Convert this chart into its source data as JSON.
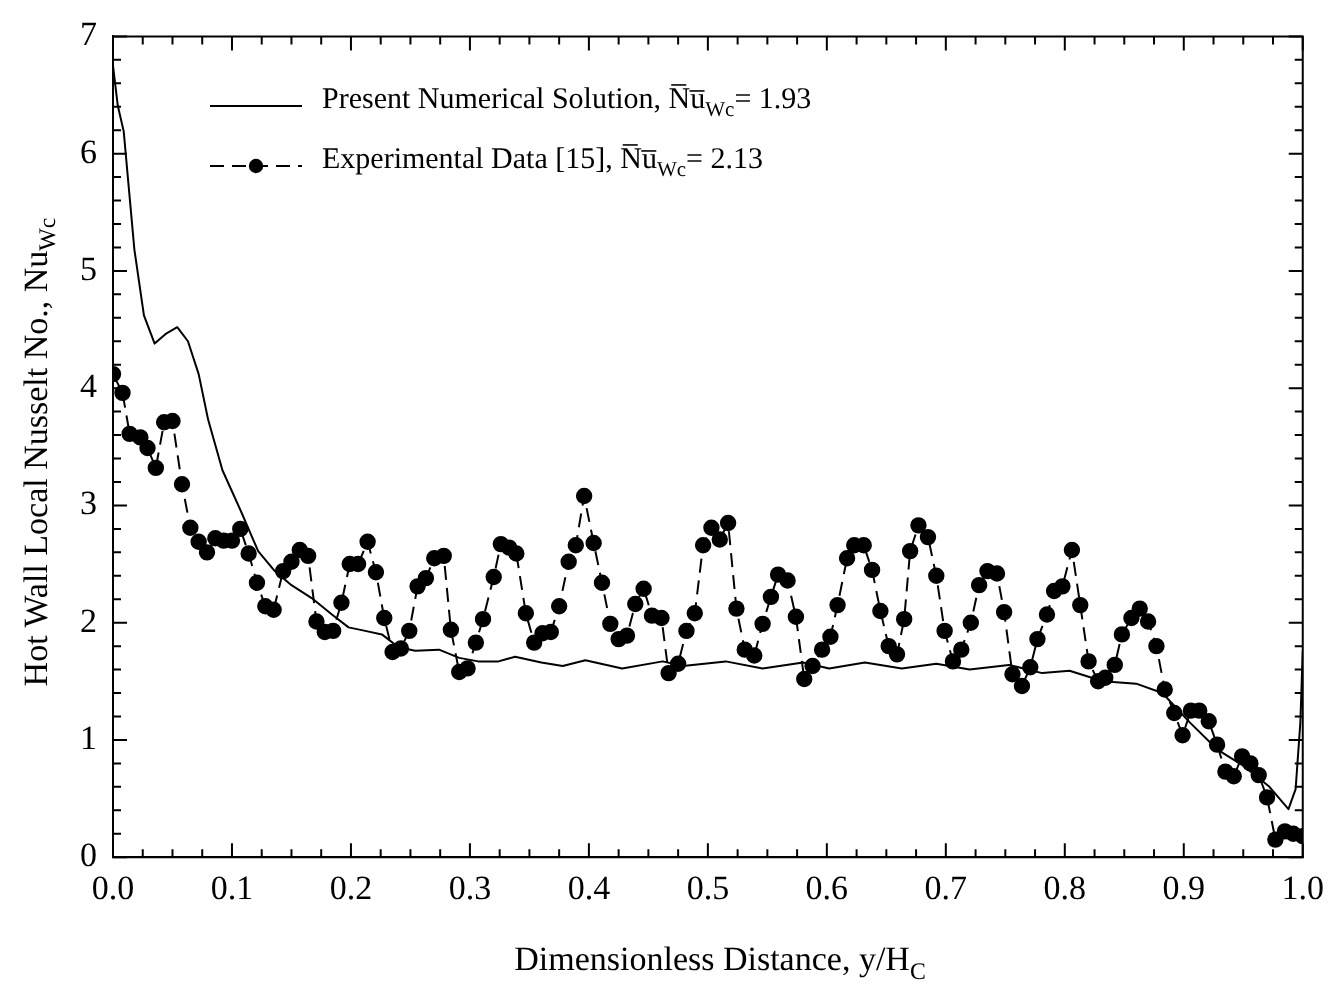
{
  "chart_data": {
    "type": "line",
    "xlabel": "Dimensionless Distance, y/H$_{C}$",
    "ylabel": "Hot Wall Local Nusselt No., Nu$_{Wc}$",
    "xlim": [
      0,
      1
    ],
    "ylim": [
      0,
      7
    ],
    "xticks": [
      {
        "value": 0,
        "label": "0.0"
      },
      {
        "value": 0.025,
        "label": null
      },
      {
        "value": 0.05,
        "label": null
      },
      {
        "value": 0.075,
        "label": null
      },
      {
        "value": 0.1,
        "label": "0.1"
      },
      {
        "value": 0.125,
        "label": null
      },
      {
        "value": 0.15,
        "label": null
      },
      {
        "value": 0.175,
        "label": null
      },
      {
        "value": 0.2,
        "label": "0.2"
      },
      {
        "value": 0.225,
        "label": null
      },
      {
        "value": 0.25,
        "label": null
      },
      {
        "value": 0.275,
        "label": null
      },
      {
        "value": 0.3,
        "label": "0.3"
      },
      {
        "value": 0.325,
        "label": null
      },
      {
        "value": 0.35,
        "label": null
      },
      {
        "value": 0.375,
        "label": null
      },
      {
        "value": 0.4,
        "label": "0.4"
      },
      {
        "value": 0.425,
        "label": null
      },
      {
        "value": 0.45,
        "label": null
      },
      {
        "value": 0.475,
        "label": null
      },
      {
        "value": 0.5,
        "label": "0.5"
      },
      {
        "value": 0.525,
        "label": null
      },
      {
        "value": 0.55,
        "label": null
      },
      {
        "value": 0.575,
        "label": null
      },
      {
        "value": 0.6,
        "label": "0.6"
      },
      {
        "value": 0.625,
        "label": null
      },
      {
        "value": 0.65,
        "label": null
      },
      {
        "value": 0.675,
        "label": null
      },
      {
        "value": 0.7,
        "label": "0.7"
      },
      {
        "value": 0.725,
        "label": null
      },
      {
        "value": 0.75,
        "label": null
      },
      {
        "value": 0.775,
        "label": null
      },
      {
        "value": 0.8,
        "label": "0.8"
      },
      {
        "value": 0.825,
        "label": null
      },
      {
        "value": 0.85,
        "label": null
      },
      {
        "value": 0.875,
        "label": null
      },
      {
        "value": 0.9,
        "label": "0.9"
      },
      {
        "value": 0.925,
        "label": null
      },
      {
        "value": 0.95,
        "label": null
      },
      {
        "value": 0.975,
        "label": null
      },
      {
        "value": 1,
        "label": "1.0"
      }
    ],
    "yticks": [
      0,
      {
        "value": 0.2,
        "label": null
      },
      {
        "value": 0.4,
        "label": null
      },
      {
        "value": 0.6,
        "label": null
      },
      {
        "value": 0.8,
        "label": null
      },
      1,
      {
        "value": 1.2,
        "label": null
      },
      {
        "value": 1.4,
        "label": null
      },
      {
        "value": 1.6,
        "label": null
      },
      {
        "value": 1.8,
        "label": null
      },
      2,
      {
        "value": 2.2,
        "label": null
      },
      {
        "value": 2.4,
        "label": null
      },
      {
        "value": 2.6,
        "label": null
      },
      {
        "value": 2.8,
        "label": null
      },
      3,
      {
        "value": 3.2,
        "label": null
      },
      {
        "value": 3.4,
        "label": null
      },
      {
        "value": 3.6,
        "label": null
      },
      {
        "value": 3.8,
        "label": null
      },
      4,
      {
        "value": 4.2,
        "label": null
      },
      {
        "value": 4.4,
        "label": null
      },
      {
        "value": 4.6,
        "label": null
      },
      {
        "value": 4.8,
        "label": null
      },
      5,
      {
        "value": 5.2,
        "label": null
      },
      {
        "value": 5.4,
        "label": null
      },
      {
        "value": 5.6,
        "label": null
      },
      {
        "value": 5.8,
        "label": null
      },
      6,
      {
        "value": 6.2,
        "label": null
      },
      {
        "value": 6.4,
        "label": null
      },
      {
        "value": 6.6,
        "label": null
      },
      {
        "value": 6.8,
        "label": null
      },
      7
    ],
    "legend": "top left",
    "series": [
      {
        "name": "Present Numerical Solution, N̅u̅$_{Wc}$= 1.93",
        "color": "#000000",
        "marker": "none",
        "line_style": "solid",
        "x": [
          0,
          0.004,
          0.009,
          0.013,
          0.018,
          0.026,
          0.035,
          0.044,
          0.054,
          0.063,
          0.072,
          0.08,
          0.092,
          0.108,
          0.122,
          0.136,
          0.15,
          0.167,
          0.184,
          0.198,
          0.212,
          0.226,
          0.24,
          0.254,
          0.274,
          0.291,
          0.307,
          0.324,
          0.338,
          0.36,
          0.378,
          0.397,
          0.428,
          0.462,
          0.479,
          0.515,
          0.546,
          0.58,
          0.602,
          0.632,
          0.663,
          0.692,
          0.72,
          0.753,
          0.781,
          0.804,
          0.832,
          0.86,
          0.882,
          0.905,
          0.928,
          0.95,
          0.972,
          0.988,
          0.994,
          0.998,
          1
        ],
        "values": [
          6.75,
          6.41,
          6.19,
          5.74,
          5.18,
          4.62,
          4.38,
          4.46,
          4.52,
          4.4,
          4.12,
          3.73,
          3.3,
          2.94,
          2.61,
          2.44,
          2.32,
          2.21,
          2.07,
          1.96,
          1.93,
          1.9,
          1.79,
          1.76,
          1.77,
          1.7,
          1.67,
          1.67,
          1.71,
          1.66,
          1.63,
          1.68,
          1.61,
          1.67,
          1.63,
          1.67,
          1.61,
          1.66,
          1.61,
          1.66,
          1.61,
          1.65,
          1.6,
          1.64,
          1.57,
          1.59,
          1.5,
          1.48,
          1.4,
          1.15,
          0.92,
          0.78,
          0.6,
          0.41,
          0.58,
          1.15,
          1.76
        ]
      },
      {
        "name": "Experimental Data [15], N̅u̅$_{Wc}$=  2.13",
        "color": "#000000",
        "marker": "circle",
        "line_style": "dashed",
        "x": [
          0,
          0.008,
          0.014,
          0.023,
          0.029,
          0.036,
          0.043,
          0.05,
          0.058,
          0.065,
          0.072,
          0.079,
          0.086,
          0.093,
          0.1,
          0.107,
          0.114,
          0.121,
          0.128,
          0.135,
          0.143,
          0.15,
          0.157,
          0.164,
          0.171,
          0.178,
          0.185,
          0.192,
          0.199,
          0.206,
          0.214,
          0.221,
          0.228,
          0.235,
          0.242,
          0.249,
          0.256,
          0.263,
          0.27,
          0.278,
          0.284,
          0.291,
          0.298,
          0.305,
          0.311,
          0.32,
          0.326,
          0.333,
          0.339,
          0.347,
          0.354,
          0.361,
          0.368,
          0.375,
          0.383,
          0.389,
          0.396,
          0.404,
          0.411,
          0.418,
          0.425,
          0.432,
          0.439,
          0.446,
          0.453,
          0.461,
          0.467,
          0.475,
          0.482,
          0.489,
          0.496,
          0.503,
          0.51,
          0.517,
          0.524,
          0.531,
          0.539,
          0.546,
          0.553,
          0.559,
          0.567,
          0.574,
          0.581,
          0.588,
          0.596,
          0.603,
          0.609,
          0.617,
          0.623,
          0.631,
          0.638,
          0.645,
          0.652,
          0.659,
          0.665,
          0.67,
          0.677,
          0.685,
          0.692,
          0.699,
          0.706,
          0.713,
          0.721,
          0.728,
          0.735,
          0.743,
          0.749,
          0.756,
          0.764,
          0.771,
          0.777,
          0.785,
          0.791,
          0.798,
          0.806,
          0.813,
          0.82,
          0.828,
          0.834,
          0.842,
          0.848,
          0.856,
          0.863,
          0.87,
          0.877,
          0.884,
          0.892,
          0.899,
          0.906,
          0.913,
          0.921,
          0.928,
          0.935,
          0.942,
          0.949,
          0.956,
          0.963,
          0.97,
          0.977,
          0.985,
          0.992,
          1
        ],
        "values": [
          4.12,
          3.96,
          3.61,
          3.58,
          3.49,
          3.32,
          3.71,
          3.72,
          3.18,
          2.81,
          2.69,
          2.6,
          2.72,
          2.7,
          2.7,
          2.8,
          2.59,
          2.34,
          2.14,
          2.11,
          2.44,
          2.52,
          2.62,
          2.57,
          2.01,
          1.92,
          1.93,
          2.17,
          2.5,
          2.5,
          2.69,
          2.43,
          2.04,
          1.75,
          1.78,
          1.93,
          2.31,
          2.38,
          2.55,
          2.57,
          1.94,
          1.58,
          1.61,
          1.83,
          2.03,
          2.39,
          2.67,
          2.64,
          2.59,
          2.08,
          1.83,
          1.91,
          1.92,
          2.14,
          2.52,
          2.66,
          3.08,
          2.68,
          2.34,
          1.99,
          1.86,
          1.89,
          2.16,
          2.29,
          2.06,
          2.04,
          1.57,
          1.65,
          1.93,
          2.08,
          2.66,
          2.81,
          2.71,
          2.85,
          2.12,
          1.77,
          1.72,
          1.99,
          2.22,
          2.41,
          2.36,
          2.05,
          1.52,
          1.63,
          1.77,
          1.88,
          2.15,
          2.55,
          2.66,
          2.66,
          2.45,
          2.1,
          1.8,
          1.73,
          2.03,
          2.61,
          2.83,
          2.73,
          2.4,
          1.93,
          1.67,
          1.77,
          2,
          2.32,
          2.44,
          2.42,
          2.09,
          1.56,
          1.46,
          1.62,
          1.86,
          2.07,
          2.27,
          2.31,
          2.62,
          2.15,
          1.67,
          1.5,
          1.53,
          1.64,
          1.9,
          2.04,
          2.12,
          2.01,
          1.8,
          1.43,
          1.23,
          1.04,
          1.25,
          1.25,
          1.16,
          0.96,
          0.73,
          0.69,
          0.86,
          0.8,
          0.7,
          0.51,
          0.15,
          0.22,
          0.2,
          0.18
        ]
      }
    ]
  }
}
